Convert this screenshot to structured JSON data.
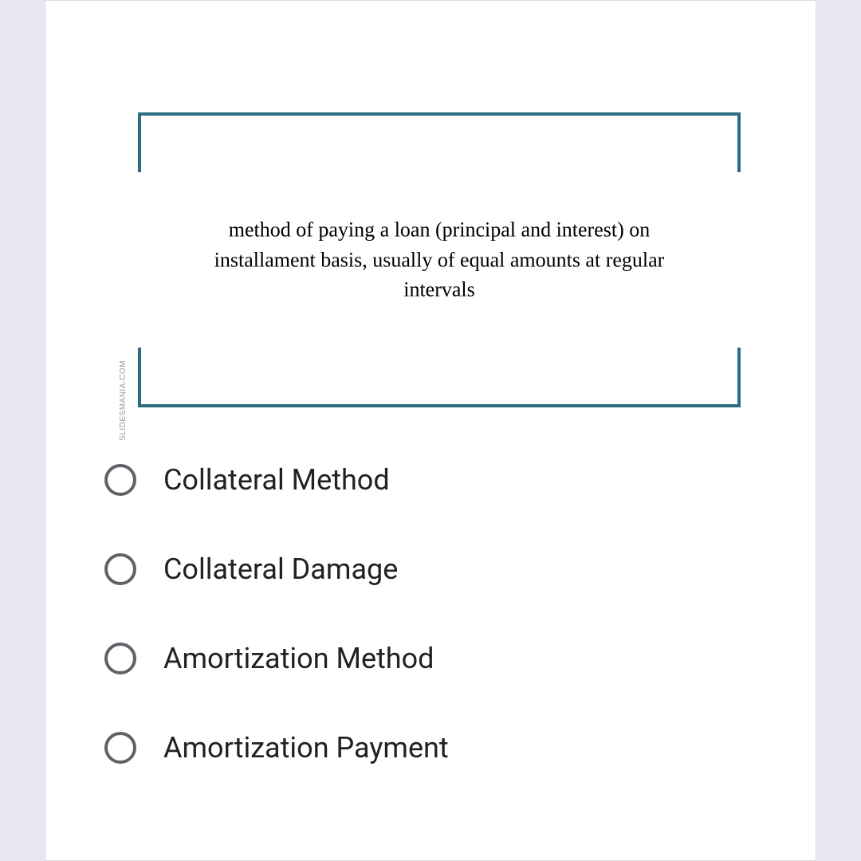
{
  "question": {
    "text": "method of paying a loan (principal and interest) on installament basis, usually of equal amounts at regular intervals",
    "frame_color": "#2c6e81",
    "text_color": "#000000",
    "font_family": "Times New Roman",
    "font_size": 26
  },
  "watermark": "SLIDESMANIA.COM",
  "options": [
    {
      "label": "Collateral Method",
      "selected": false
    },
    {
      "label": "Collateral Damage",
      "selected": false
    },
    {
      "label": "Amortization Method",
      "selected": false
    },
    {
      "label": "Amortization Payment",
      "selected": false
    }
  ],
  "styling": {
    "page_background": "#ebe7f2",
    "card_background": "#ffffff",
    "card_border": "#dadce0",
    "radio_border_color": "#5f6368",
    "option_text_color": "#202124",
    "option_font_size": 36
  }
}
